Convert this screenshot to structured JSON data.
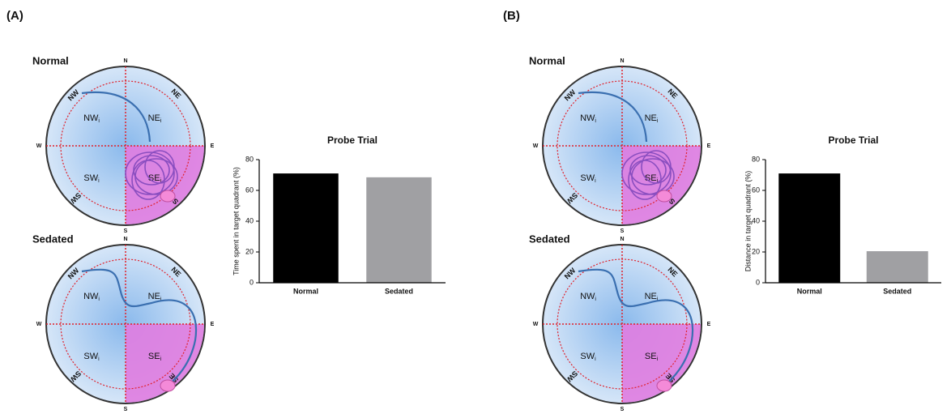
{
  "panels": [
    {
      "label": "(A)",
      "mazes": [
        "Normal",
        "Sedated"
      ]
    },
    {
      "label": "(B)",
      "mazes": [
        "Normal",
        "Sedated"
      ]
    }
  ],
  "maze": {
    "compass": [
      "N",
      "E",
      "S",
      "W",
      "NE",
      "SE",
      "SW",
      "NW"
    ],
    "quadrants": [
      "NW",
      "NE",
      "SW",
      "SE"
    ],
    "quadrant_subscript": "i"
  },
  "chart_data": [
    {
      "type": "bar",
      "title": "Probe Trial",
      "ylabel": "Time spent in target quadrant (%)",
      "categories": [
        "Normal",
        "Sedated"
      ],
      "values": [
        71,
        68.5
      ],
      "colors": [
        "#000000",
        "#a0a0a3"
      ],
      "ylim": [
        0,
        80
      ],
      "yticks": [
        0,
        20,
        40,
        60,
        80
      ]
    },
    {
      "type": "bar",
      "title": "Probe Trial",
      "ylabel": "Distance in target quadrant (%)",
      "categories": [
        "Normal",
        "Sedated"
      ],
      "values": [
        71,
        20.5
      ],
      "colors": [
        "#000000",
        "#a0a0a3"
      ],
      "ylim": [
        0,
        80
      ],
      "yticks": [
        0,
        20,
        40,
        60,
        80
      ]
    }
  ]
}
